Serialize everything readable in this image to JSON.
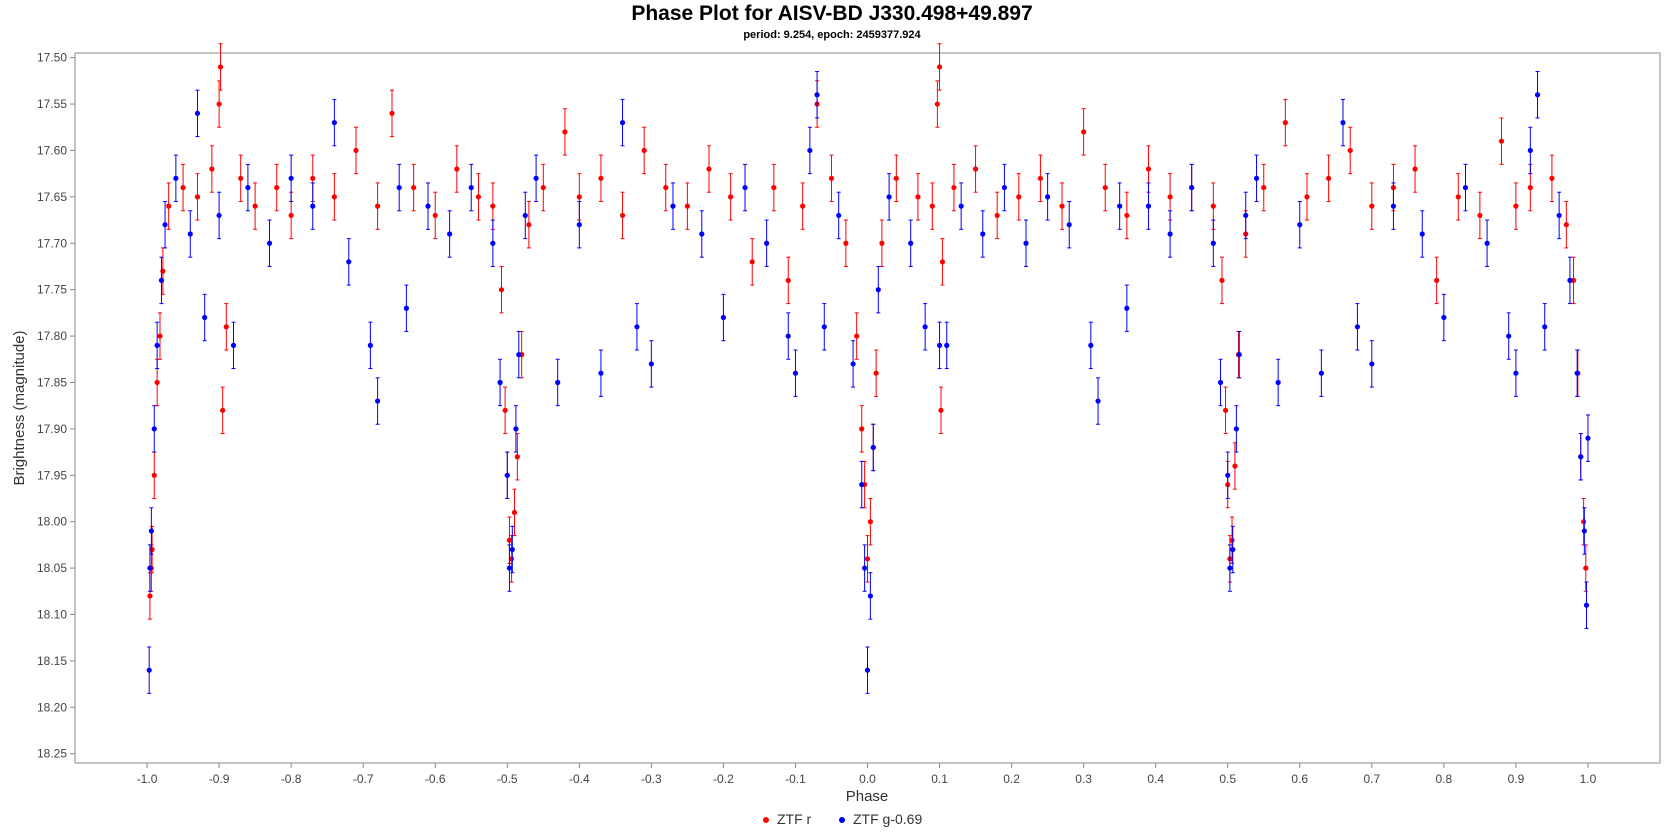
{
  "chart_data": {
    "type": "scatter",
    "title": "Phase Plot for AISV-BD J330.498+49.897",
    "subtitle": "period: 9.254, epoch: 2459377.924",
    "xlabel": "Phase",
    "ylabel": "Brightness (magnitude)",
    "xlim": [
      -1.1,
      1.1
    ],
    "ylim": [
      18.26,
      17.495
    ],
    "y_inverted": true,
    "x_ticks": [
      "-1.0",
      "-0.9",
      "-0.8",
      "-0.7",
      "-0.6",
      "-0.5",
      "-0.4",
      "-0.3",
      "-0.2",
      "-0.1",
      "0.0",
      "0.1",
      "0.2",
      "0.3",
      "0.4",
      "0.5",
      "0.6",
      "0.7",
      "0.8",
      "0.9",
      "1.0"
    ],
    "y_ticks": [
      "17.50",
      "17.55",
      "17.60",
      "17.65",
      "17.70",
      "17.75",
      "17.80",
      "17.85",
      "17.90",
      "17.95",
      "18.00",
      "18.05",
      "18.10",
      "18.15",
      "18.20",
      "18.25"
    ],
    "grid": false,
    "error_bars": true,
    "legend_position": "bottom-center",
    "series": [
      {
        "name": "ZTF r",
        "color": "#ff0000",
        "points": [
          [
            -0.996,
            18.08
          ],
          [
            -0.994,
            18.05
          ],
          [
            -0.993,
            18.03
          ],
          [
            -0.99,
            17.95
          ],
          [
            -0.986,
            17.85
          ],
          [
            -0.982,
            17.8
          ],
          [
            -0.978,
            17.73
          ],
          [
            -0.97,
            17.66
          ],
          [
            -0.95,
            17.64
          ],
          [
            -0.93,
            17.65
          ],
          [
            -0.91,
            17.62
          ],
          [
            -0.9,
            17.55
          ],
          [
            -0.898,
            17.51
          ],
          [
            -0.895,
            17.88
          ],
          [
            -0.89,
            17.79
          ],
          [
            -0.87,
            17.63
          ],
          [
            -0.85,
            17.66
          ],
          [
            -0.82,
            17.64
          ],
          [
            -0.8,
            17.67
          ],
          [
            -0.77,
            17.63
          ],
          [
            -0.74,
            17.65
          ],
          [
            -0.71,
            17.6
          ],
          [
            -0.68,
            17.66
          ],
          [
            -0.66,
            17.56
          ],
          [
            -0.63,
            17.64
          ],
          [
            -0.6,
            17.67
          ],
          [
            -0.57,
            17.62
          ],
          [
            -0.54,
            17.65
          ],
          [
            -0.52,
            17.66
          ],
          [
            -0.508,
            17.75
          ],
          [
            -0.503,
            17.88
          ],
          [
            -0.5,
            17.95
          ],
          [
            -0.497,
            18.02
          ],
          [
            -0.494,
            18.04
          ],
          [
            -0.49,
            17.99
          ],
          [
            -0.486,
            17.93
          ],
          [
            -0.48,
            17.82
          ],
          [
            -0.47,
            17.68
          ],
          [
            -0.45,
            17.64
          ],
          [
            -0.42,
            17.58
          ],
          [
            -0.4,
            17.65
          ],
          [
            -0.37,
            17.63
          ],
          [
            -0.34,
            17.67
          ],
          [
            -0.31,
            17.6
          ],
          [
            -0.28,
            17.64
          ],
          [
            -0.25,
            17.66
          ],
          [
            -0.22,
            17.62
          ],
          [
            -0.19,
            17.65
          ],
          [
            -0.16,
            17.72
          ],
          [
            -0.13,
            17.64
          ],
          [
            -0.11,
            17.74
          ],
          [
            -0.09,
            17.66
          ],
          [
            -0.07,
            17.55
          ],
          [
            -0.05,
            17.63
          ],
          [
            -0.03,
            17.7
          ],
          [
            -0.015,
            17.8
          ],
          [
            -0.008,
            17.9
          ],
          [
            -0.004,
            17.96
          ],
          [
            0.0,
            18.04
          ],
          [
            0.004,
            18.0
          ],
          [
            0.008,
            17.92
          ],
          [
            0.012,
            17.84
          ],
          [
            0.02,
            17.7
          ],
          [
            0.04,
            17.63
          ],
          [
            0.07,
            17.65
          ],
          [
            0.09,
            17.66
          ],
          [
            0.097,
            17.55
          ],
          [
            0.1,
            17.51
          ],
          [
            0.102,
            17.88
          ],
          [
            0.104,
            17.72
          ],
          [
            0.12,
            17.64
          ],
          [
            0.15,
            17.62
          ],
          [
            0.18,
            17.67
          ],
          [
            0.21,
            17.65
          ],
          [
            0.24,
            17.63
          ],
          [
            0.27,
            17.66
          ],
          [
            0.3,
            17.58
          ],
          [
            0.33,
            17.64
          ],
          [
            0.36,
            17.67
          ],
          [
            0.39,
            17.62
          ],
          [
            0.42,
            17.65
          ],
          [
            0.45,
            17.64
          ],
          [
            0.48,
            17.66
          ],
          [
            0.492,
            17.74
          ],
          [
            0.497,
            17.88
          ],
          [
            0.5,
            17.96
          ],
          [
            0.503,
            18.04
          ],
          [
            0.506,
            18.02
          ],
          [
            0.51,
            17.94
          ],
          [
            0.515,
            17.82
          ],
          [
            0.525,
            17.69
          ],
          [
            0.55,
            17.64
          ],
          [
            0.58,
            17.57
          ],
          [
            0.61,
            17.65
          ],
          [
            0.64,
            17.63
          ],
          [
            0.67,
            17.6
          ],
          [
            0.7,
            17.66
          ],
          [
            0.73,
            17.64
          ],
          [
            0.76,
            17.62
          ],
          [
            0.79,
            17.74
          ],
          [
            0.82,
            17.65
          ],
          [
            0.85,
            17.67
          ],
          [
            0.88,
            17.59
          ],
          [
            0.9,
            17.66
          ],
          [
            0.92,
            17.64
          ],
          [
            0.95,
            17.63
          ],
          [
            0.97,
            17.68
          ],
          [
            0.98,
            17.74
          ],
          [
            0.986,
            17.84
          ],
          [
            0.99,
            17.93
          ],
          [
            0.994,
            18.0
          ],
          [
            0.997,
            18.05
          ]
        ]
      },
      {
        "name": "ZTF g-0.69",
        "color": "#0000ff",
        "points": [
          [
            -0.997,
            18.16
          ],
          [
            -0.996,
            18.05
          ],
          [
            -0.994,
            18.01
          ],
          [
            -0.99,
            17.9
          ],
          [
            -0.986,
            17.81
          ],
          [
            -0.98,
            17.74
          ],
          [
            -0.975,
            17.68
          ],
          [
            -0.96,
            17.63
          ],
          [
            -0.94,
            17.69
          ],
          [
            -0.93,
            17.56
          ],
          [
            -0.92,
            17.78
          ],
          [
            -0.9,
            17.67
          ],
          [
            -0.88,
            17.81
          ],
          [
            -0.86,
            17.64
          ],
          [
            -0.83,
            17.7
          ],
          [
            -0.8,
            17.63
          ],
          [
            -0.77,
            17.66
          ],
          [
            -0.74,
            17.57
          ],
          [
            -0.72,
            17.72
          ],
          [
            -0.69,
            17.81
          ],
          [
            -0.68,
            17.87
          ],
          [
            -0.65,
            17.64
          ],
          [
            -0.64,
            17.77
          ],
          [
            -0.61,
            17.66
          ],
          [
            -0.58,
            17.69
          ],
          [
            -0.55,
            17.64
          ],
          [
            -0.52,
            17.7
          ],
          [
            -0.51,
            17.85
          ],
          [
            -0.5,
            17.95
          ],
          [
            -0.497,
            18.05
          ],
          [
            -0.493,
            18.03
          ],
          [
            -0.488,
            17.9
          ],
          [
            -0.484,
            17.82
          ],
          [
            -0.475,
            17.67
          ],
          [
            -0.46,
            17.63
          ],
          [
            -0.43,
            17.85
          ],
          [
            -0.4,
            17.68
          ],
          [
            -0.37,
            17.84
          ],
          [
            -0.34,
            17.57
          ],
          [
            -0.32,
            17.79
          ],
          [
            -0.3,
            17.83
          ],
          [
            -0.27,
            17.66
          ],
          [
            -0.23,
            17.69
          ],
          [
            -0.2,
            17.78
          ],
          [
            -0.17,
            17.64
          ],
          [
            -0.14,
            17.7
          ],
          [
            -0.11,
            17.8
          ],
          [
            -0.1,
            17.84
          ],
          [
            -0.08,
            17.6
          ],
          [
            -0.07,
            17.54
          ],
          [
            -0.06,
            17.79
          ],
          [
            -0.04,
            17.67
          ],
          [
            -0.02,
            17.83
          ],
          [
            -0.008,
            17.96
          ],
          [
            -0.004,
            18.05
          ],
          [
            0.0,
            18.16
          ],
          [
            0.004,
            18.08
          ],
          [
            0.008,
            17.92
          ],
          [
            0.015,
            17.75
          ],
          [
            0.03,
            17.65
          ],
          [
            0.06,
            17.7
          ],
          [
            0.08,
            17.79
          ],
          [
            0.1,
            17.81
          ],
          [
            0.11,
            17.81
          ],
          [
            0.13,
            17.66
          ],
          [
            0.16,
            17.69
          ],
          [
            0.19,
            17.64
          ],
          [
            0.22,
            17.7
          ],
          [
            0.25,
            17.65
          ],
          [
            0.28,
            17.68
          ],
          [
            0.31,
            17.81
          ],
          [
            0.32,
            17.87
          ],
          [
            0.35,
            17.66
          ],
          [
            0.36,
            17.77
          ],
          [
            0.39,
            17.66
          ],
          [
            0.42,
            17.69
          ],
          [
            0.45,
            17.64
          ],
          [
            0.48,
            17.7
          ],
          [
            0.49,
            17.85
          ],
          [
            0.5,
            17.95
          ],
          [
            0.503,
            18.05
          ],
          [
            0.507,
            18.03
          ],
          [
            0.512,
            17.9
          ],
          [
            0.516,
            17.82
          ],
          [
            0.525,
            17.67
          ],
          [
            0.54,
            17.63
          ],
          [
            0.57,
            17.85
          ],
          [
            0.6,
            17.68
          ],
          [
            0.63,
            17.84
          ],
          [
            0.66,
            17.57
          ],
          [
            0.68,
            17.79
          ],
          [
            0.7,
            17.83
          ],
          [
            0.73,
            17.66
          ],
          [
            0.77,
            17.69
          ],
          [
            0.8,
            17.78
          ],
          [
            0.83,
            17.64
          ],
          [
            0.86,
            17.7
          ],
          [
            0.89,
            17.8
          ],
          [
            0.9,
            17.84
          ],
          [
            0.92,
            17.6
          ],
          [
            0.93,
            17.54
          ],
          [
            0.94,
            17.79
          ],
          [
            0.96,
            17.67
          ],
          [
            0.975,
            17.74
          ],
          [
            0.985,
            17.84
          ],
          [
            0.99,
            17.93
          ],
          [
            0.995,
            18.01
          ],
          [
            0.998,
            18.09
          ],
          [
            1.0,
            17.91
          ]
        ]
      }
    ]
  }
}
